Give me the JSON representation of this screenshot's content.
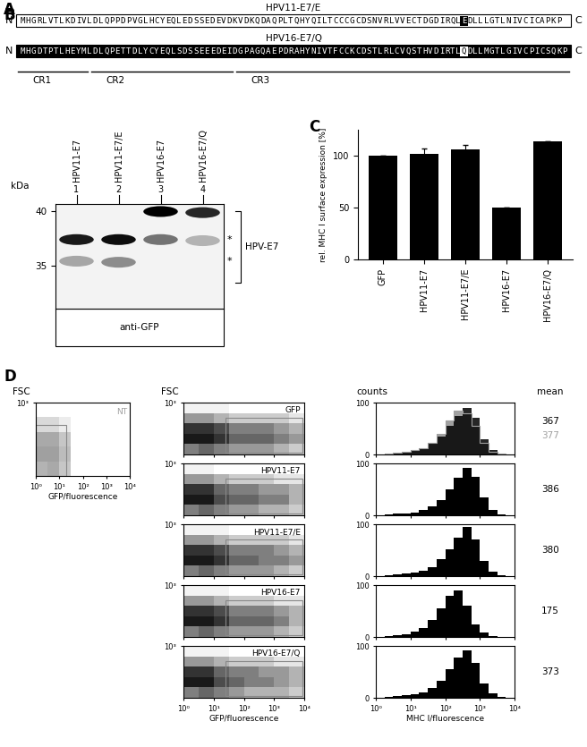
{
  "panel_labels": [
    "A",
    "B",
    "C",
    "D"
  ],
  "sequences": [
    {
      "name": "HPV11-E7/E",
      "color": "#ffffff",
      "prefix": "MHGRLVTLKDIVLDLQPPDPVGLHCYEQLEDSSEDEVDKVDKQDAQPLTQHYQILTCCCGCDSNVRLVVECTDGDIRQL",
      "mutation": "E",
      "suffix": "DLLLGTLNIVCICAPKP"
    },
    {
      "name": "HPV16-E7/Q",
      "color": "#000000",
      "prefix": "MHGDTPTLHEYMLDLQPETTDLYCYEQLSDSSEEEDEIDGPAGQAEPDRAHYNIVTFCCKCDSTLRLCVQSTHVDIRTL",
      "mutation": "Q",
      "suffix": "DLLMGTLGIVCPICSQKP"
    }
  ],
  "termini": [
    "N",
    "C"
  ],
  "regions": [
    "CR1",
    "CR2",
    "CR3"
  ],
  "blot": {
    "lanes": [
      "HPV11-E7",
      "HPV11-E7/E",
      "HPV16-E7",
      "HPV16-E7/Q"
    ],
    "lane_numbers": [
      1,
      2,
      3,
      4
    ],
    "ylabel": "kDa",
    "ylim": [
      31,
      40.7
    ],
    "yticks": [
      35,
      40
    ],
    "bands": [
      {
        "lane": 1,
        "kDa": 37.4,
        "intensity": 0.9
      },
      {
        "lane": 1,
        "kDa": 35.4,
        "intensity": 0.35
      },
      {
        "lane": 2,
        "kDa": 37.4,
        "intensity": 0.95
      },
      {
        "lane": 2,
        "kDa": 35.3,
        "intensity": 0.45
      },
      {
        "lane": 3,
        "kDa": 40.0,
        "intensity": 1.0
      },
      {
        "lane": 3,
        "kDa": 37.4,
        "intensity": 0.55
      },
      {
        "lane": 4,
        "kDa": 39.9,
        "intensity": 0.85
      },
      {
        "lane": 4,
        "kDa": 37.3,
        "intensity": 0.3
      }
    ],
    "markers": [
      {
        "label": "*",
        "kDa": 37.4
      },
      {
        "label": "*",
        "kDa": 35.4
      }
    ],
    "bracket_label": "HPV-E7",
    "antibody": "anti-GFP"
  },
  "chart_data": {
    "type": "bar",
    "ylabel": "rel. MHC I surface expression [%]",
    "categories": [
      "GFP",
      "HPV11-E7",
      "HPV11-E7/E",
      "HPV16-E7",
      "HPV16-E7/Q"
    ],
    "values": [
      100,
      102,
      106,
      50,
      114
    ],
    "errors": [
      0,
      5,
      4,
      0,
      0
    ],
    "color": "#000000",
    "ylim": [
      0,
      125
    ],
    "yticks": [
      0,
      50,
      100
    ]
  },
  "flow": {
    "headers": [
      "FSC",
      "FSC",
      "counts",
      "mean"
    ],
    "dot_plot": {
      "type": "density",
      "log": "x",
      "xlim": [
        1,
        10000
      ],
      "xticks": [
        {
          "value": 1,
          "label": "10⁰"
        },
        {
          "value": 10,
          "label": "10¹"
        },
        {
          "value": 100,
          "label": "10²"
        },
        {
          "value": 1000,
          "label": "10³"
        },
        {
          "value": 10000,
          "label": "10⁴"
        }
      ],
      "ylim": [
        0,
        1000
      ],
      "yticks": [
        {
          "value": 1000,
          "label": "10³"
        }
      ],
      "xlabel": "GFP/fluorescence",
      "x_bin_edges": [
        1,
        3.16,
        10,
        31.6,
        100,
        316,
        1000,
        3162,
        10000
      ],
      "y_bin_edges": [
        0,
        200,
        400,
        600,
        800,
        1000
      ],
      "gate": {
        "x": [
          25,
          9000
        ],
        "y": [
          30,
          700
        ]
      }
    },
    "histogram": {
      "type": "histogram",
      "log": "x",
      "xlim": [
        1,
        10000
      ],
      "xticks": [
        {
          "value": 1,
          "label": "10⁰"
        },
        {
          "value": 10,
          "label": "10¹"
        },
        {
          "value": 100,
          "label": "10²"
        },
        {
          "value": 1000,
          "label": "10³"
        },
        {
          "value": 10000,
          "label": "10⁴"
        }
      ],
      "ylim": [
        0,
        100
      ],
      "yticks": [
        0,
        100
      ],
      "xlabel": "MHC I/fluorescence",
      "bins": [
        1,
        1.78,
        3.16,
        5.62,
        10,
        17.8,
        31.6,
        56.2,
        100,
        178,
        316,
        562,
        1000,
        1778,
        3162,
        5623,
        10000
      ]
    },
    "control": {
      "label": "NT",
      "color": "#a0a0a0",
      "density": [
        [
          0.8,
          0.9,
          0.6,
          0,
          0,
          0,
          0,
          0
        ],
        [
          1,
          1,
          0.7,
          0,
          0,
          0,
          0,
          0
        ],
        [
          0.9,
          0.9,
          0.6,
          0,
          0,
          0,
          0,
          0
        ],
        [
          0.4,
          0.4,
          0.2,
          0,
          0,
          0,
          0,
          0
        ],
        [
          0,
          0,
          0,
          0,
          0,
          0,
          0,
          0
        ]
      ],
      "gate": {
        "x": [
          1,
          20
        ],
        "y": [
          0,
          700
        ]
      }
    },
    "samples": [
      {
        "label": "GFP",
        "color": "#000000",
        "tick_labels": "y",
        "density": [
          [
            0.5,
            0.6,
            0.5,
            0.4,
            0.4,
            0.4,
            0.3,
            0.2
          ],
          [
            0.9,
            0.9,
            0.8,
            0.6,
            0.6,
            0.6,
            0.5,
            0.4
          ],
          [
            0.8,
            0.8,
            0.7,
            0.5,
            0.5,
            0.5,
            0.4,
            0.3
          ],
          [
            0.4,
            0.4,
            0.3,
            0.2,
            0.2,
            0.2,
            0.2,
            0.1
          ],
          [
            0.05,
            0.05,
            0.05,
            0,
            0,
            0,
            0,
            0
          ]
        ],
        "counts": [
          0,
          2,
          3,
          5,
          8,
          12,
          20,
          35,
          55,
          75,
          90,
          70,
          30,
          8,
          2,
          0
        ],
        "mean": 367,
        "control_counts": [
          0,
          2,
          3,
          5,
          8,
          12,
          22,
          40,
          65,
          85,
          80,
          55,
          22,
          6,
          1,
          0
        ],
        "control_mean": 377
      },
      {
        "label": "HPV11-E7",
        "color": "#000000",
        "tick_labels": "y",
        "density": [
          [
            0.5,
            0.6,
            0.5,
            0.4,
            0.4,
            0.3,
            0.3,
            0.2
          ],
          [
            0.9,
            0.9,
            0.7,
            0.6,
            0.6,
            0.5,
            0.5,
            0.3
          ],
          [
            0.8,
            0.8,
            0.6,
            0.5,
            0.5,
            0.4,
            0.4,
            0.3
          ],
          [
            0.4,
            0.4,
            0.3,
            0.2,
            0.2,
            0.2,
            0.1,
            0.1
          ],
          [
            0.05,
            0.05,
            0,
            0,
            0,
            0,
            0,
            0
          ]
        ],
        "counts": [
          0,
          2,
          3,
          4,
          6,
          10,
          18,
          30,
          50,
          72,
          92,
          75,
          35,
          10,
          2,
          0
        ],
        "mean": 386
      },
      {
        "label": "HPV11-E7/E",
        "color": "#000000",
        "tick_labels": "y",
        "density": [
          [
            0.5,
            0.6,
            0.5,
            0.4,
            0.4,
            0.4,
            0.3,
            0.2
          ],
          [
            0.9,
            0.9,
            0.8,
            0.6,
            0.6,
            0.5,
            0.5,
            0.4
          ],
          [
            0.8,
            0.8,
            0.7,
            0.5,
            0.5,
            0.5,
            0.4,
            0.3
          ],
          [
            0.4,
            0.4,
            0.3,
            0.2,
            0.2,
            0.2,
            0.2,
            0.1
          ],
          [
            0.05,
            0.05,
            0.05,
            0,
            0,
            0,
            0,
            0
          ]
        ],
        "counts": [
          0,
          2,
          3,
          5,
          7,
          10,
          18,
          32,
          52,
          75,
          95,
          70,
          30,
          8,
          2,
          0
        ],
        "mean": 380
      },
      {
        "label": "HPV16-E7",
        "color": "#000000",
        "tick_labels": "y",
        "density": [
          [
            0.5,
            0.6,
            0.5,
            0.4,
            0.4,
            0.4,
            0.3,
            0.2
          ],
          [
            0.9,
            0.9,
            0.8,
            0.6,
            0.6,
            0.6,
            0.5,
            0.3
          ],
          [
            0.8,
            0.8,
            0.7,
            0.5,
            0.5,
            0.5,
            0.4,
            0.3
          ],
          [
            0.4,
            0.4,
            0.3,
            0.2,
            0.2,
            0.2,
            0.1,
            0.1
          ],
          [
            0.05,
            0.05,
            0.05,
            0,
            0,
            0,
            0,
            0
          ]
        ],
        "counts": [
          0,
          2,
          4,
          6,
          10,
          18,
          32,
          55,
          80,
          90,
          60,
          25,
          8,
          2,
          0,
          0
        ],
        "mean": 175
      },
      {
        "label": "HPV16-E7/Q",
        "color": "#000000",
        "density": [
          [
            0.5,
            0.6,
            0.5,
            0.4,
            0.3,
            0.3,
            0.3,
            0.2
          ],
          [
            0.9,
            0.9,
            0.7,
            0.6,
            0.5,
            0.5,
            0.4,
            0.3
          ],
          [
            0.8,
            0.8,
            0.6,
            0.5,
            0.5,
            0.4,
            0.4,
            0.3
          ],
          [
            0.4,
            0.4,
            0.3,
            0.2,
            0.2,
            0.2,
            0.1,
            0.1
          ],
          [
            0.05,
            0.05,
            0.05,
            0,
            0,
            0,
            0,
            0
          ]
        ],
        "counts": [
          0,
          2,
          3,
          5,
          7,
          11,
          19,
          33,
          55,
          78,
          92,
          68,
          28,
          8,
          2,
          0
        ],
        "mean": 373
      }
    ]
  }
}
